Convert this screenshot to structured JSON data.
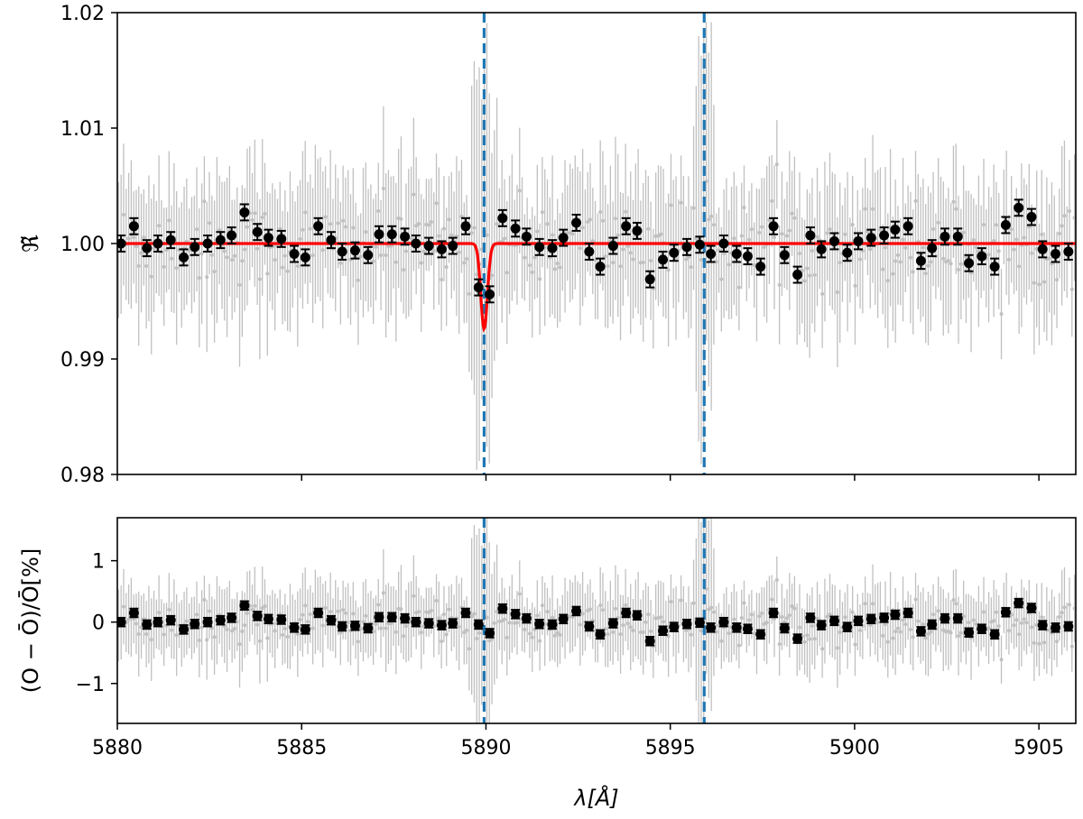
{
  "chart_data": [
    {
      "type": "scatter",
      "panel": "top",
      "ylabel": "ℜ̃",
      "xlim": [
        5880,
        5906
      ],
      "ylim": [
        0.98,
        1.02
      ],
      "yticks": [
        "0.98",
        "0.99",
        "1.00",
        "1.01",
        "1.02"
      ],
      "xticks_labeled": false,
      "vlines": [
        5889.95,
        5895.92
      ],
      "binned": {
        "x": [
          5880.1,
          5880.45,
          5880.8,
          5881.1,
          5881.45,
          5881.8,
          5882.1,
          5882.45,
          5882.8,
          5883.1,
          5883.45,
          5883.8,
          5884.1,
          5884.45,
          5884.8,
          5885.1,
          5885.45,
          5885.8,
          5886.1,
          5886.45,
          5886.8,
          5887.1,
          5887.45,
          5887.8,
          5888.1,
          5888.45,
          5888.8,
          5889.1,
          5889.45,
          5889.8,
          5890.1,
          5890.45,
          5890.8,
          5891.1,
          5891.45,
          5891.8,
          5892.1,
          5892.45,
          5892.8,
          5893.1,
          5893.45,
          5893.8,
          5894.1,
          5894.45,
          5894.8,
          5895.1,
          5895.45,
          5895.8,
          5896.1,
          5896.45,
          5896.8,
          5897.1,
          5897.45,
          5897.8,
          5898.1,
          5898.45,
          5898.8,
          5899.1,
          5899.45,
          5899.8,
          5900.1,
          5900.45,
          5900.8,
          5901.1,
          5901.45,
          5901.8,
          5902.1,
          5902.45,
          5902.8,
          5903.1,
          5903.45,
          5903.8,
          5904.1,
          5904.45,
          5904.8,
          5905.1,
          5905.45,
          5905.8
        ],
        "y": [
          1.0,
          1.0015,
          0.9996,
          1.0,
          1.0003,
          0.9988,
          0.9997,
          1.0,
          1.0003,
          1.0007,
          1.0027,
          1.001,
          1.0005,
          1.0004,
          0.9991,
          0.9988,
          1.0015,
          1.0003,
          0.9993,
          0.9994,
          0.999,
          1.0008,
          1.0008,
          1.0006,
          1.0,
          0.9998,
          0.9995,
          0.9998,
          1.0015,
          0.9962,
          0.9956,
          1.0022,
          1.0013,
          1.0006,
          0.9997,
          0.9996,
          1.0005,
          1.0018,
          0.9993,
          0.998,
          0.9998,
          1.0015,
          1.0011,
          0.9969,
          0.9986,
          0.9992,
          0.9997,
          0.9999,
          0.9991,
          1.0,
          0.9991,
          0.9989,
          0.998,
          1.0015,
          0.999,
          0.9973,
          1.0007,
          0.9995,
          1.0002,
          0.9992,
          1.0002,
          1.0005,
          1.0007,
          1.0012,
          1.0015,
          0.9985,
          0.9996,
          1.0006,
          1.0006,
          0.9983,
          0.9989,
          0.998,
          1.0016,
          1.0031,
          1.0023,
          0.9995,
          0.9991,
          0.9993
        ],
        "err": 0.0007
      },
      "raw": {
        "color": "#c0c0c0",
        "sigma": 0.004,
        "n": 380
      },
      "model": {
        "color": "#ff0000",
        "baseline": 1.0,
        "center": 5889.95,
        "depth": 0.0074,
        "width": 0.09
      }
    },
    {
      "type": "scatter",
      "panel": "bottom",
      "ylabel": "(O − Ō)/Ō[%]",
      "xlabel": "λ[Å]",
      "xlim": [
        5880,
        5906
      ],
      "ylim": [
        -1.65,
        1.7
      ],
      "yticks": [
        "−1",
        "0",
        "1"
      ],
      "xticks": [
        "5880",
        "5885",
        "5890",
        "5895",
        "5900",
        "5905"
      ],
      "vlines": [
        5889.95,
        5895.92
      ],
      "binned": {
        "note_values_percent": true,
        "y": [
          0.0,
          0.15,
          -0.04,
          0.0,
          0.03,
          -0.12,
          -0.03,
          0.0,
          0.03,
          0.07,
          0.27,
          0.1,
          0.05,
          0.04,
          -0.09,
          -0.12,
          0.15,
          0.03,
          -0.07,
          -0.06,
          -0.1,
          0.08,
          0.08,
          0.06,
          0.0,
          -0.02,
          -0.05,
          -0.02,
          0.15,
          -0.04,
          -0.18,
          0.22,
          0.13,
          0.06,
          -0.03,
          -0.04,
          0.05,
          0.18,
          -0.07,
          -0.2,
          -0.02,
          0.15,
          0.11,
          -0.31,
          -0.14,
          -0.08,
          -0.03,
          -0.01,
          -0.09,
          0.0,
          -0.09,
          -0.11,
          -0.2,
          0.15,
          -0.1,
          -0.27,
          0.07,
          -0.05,
          0.02,
          -0.08,
          0.02,
          0.05,
          0.07,
          0.12,
          0.15,
          -0.15,
          -0.04,
          0.06,
          0.06,
          -0.17,
          -0.11,
          -0.2,
          0.16,
          0.31,
          0.23,
          -0.05,
          -0.09,
          -0.07
        ],
        "err": 0.07
      },
      "raw": {
        "color": "#c0c0c0",
        "sigma": 0.4,
        "n": 380
      }
    }
  ],
  "colors": {
    "binned": "#000000",
    "raw": "#c0c0c0",
    "model": "#ff0000",
    "vline": "#1f77b4"
  }
}
